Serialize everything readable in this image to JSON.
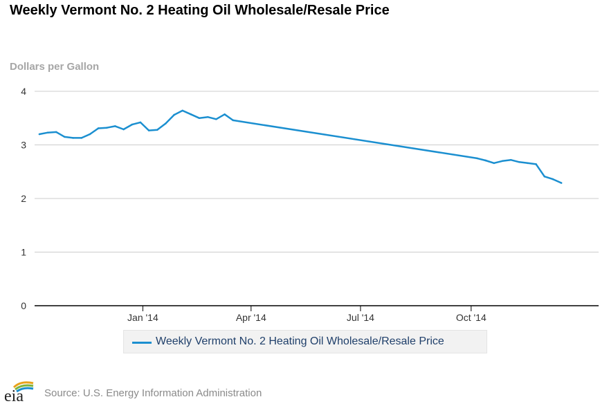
{
  "chart_data": {
    "type": "line",
    "title": "Weekly Vermont No. 2 Heating Oil Wholesale/Resale Price",
    "ylabel": "Dollars per Gallon",
    "xlabel": "",
    "ylim": [
      0,
      4
    ],
    "y_ticks": [
      "0",
      "1",
      "2",
      "3",
      "4"
    ],
    "x_ticks": [
      {
        "label": "Jan '14",
        "date": "2014-01-01"
      },
      {
        "label": "Apr '14",
        "date": "2014-04-01"
      },
      {
        "label": "Jul '14",
        "date": "2014-07-01"
      },
      {
        "label": "Oct '14",
        "date": "2014-10-01"
      }
    ],
    "x_range": [
      "2013-10-03",
      "2015-01-15"
    ],
    "grid": true,
    "legend_position": "bottom-center",
    "series": [
      {
        "name": "Weekly Vermont No. 2 Heating Oil Wholesale/Resale Price",
        "color": "#1b8fd0",
        "points": [
          {
            "x": "2013-10-07",
            "y": 3.2
          },
          {
            "x": "2013-10-14",
            "y": 3.23
          },
          {
            "x": "2013-10-21",
            "y": 3.24
          },
          {
            "x": "2013-10-28",
            "y": 3.15
          },
          {
            "x": "2013-11-04",
            "y": 3.13
          },
          {
            "x": "2013-11-11",
            "y": 3.13
          },
          {
            "x": "2013-11-18",
            "y": 3.2
          },
          {
            "x": "2013-11-25",
            "y": 3.31
          },
          {
            "x": "2013-12-02",
            "y": 3.32
          },
          {
            "x": "2013-12-09",
            "y": 3.35
          },
          {
            "x": "2013-12-16",
            "y": 3.29
          },
          {
            "x": "2013-12-23",
            "y": 3.38
          },
          {
            "x": "2013-12-30",
            "y": 3.42
          },
          {
            "x": "2014-01-06",
            "y": 3.27
          },
          {
            "x": "2014-01-13",
            "y": 3.28
          },
          {
            "x": "2014-01-20",
            "y": 3.4
          },
          {
            "x": "2014-01-27",
            "y": 3.56
          },
          {
            "x": "2014-02-03",
            "y": 3.64
          },
          {
            "x": "2014-02-10",
            "y": 3.57
          },
          {
            "x": "2014-02-17",
            "y": 3.5
          },
          {
            "x": "2014-02-24",
            "y": 3.52
          },
          {
            "x": "2014-03-03",
            "y": 3.48
          },
          {
            "x": "2014-03-10",
            "y": 3.57
          },
          {
            "x": "2014-03-17",
            "y": 3.46
          },
          {
            "x": "2014-10-06",
            "y": 2.75
          },
          {
            "x": "2014-10-13",
            "y": 2.71
          },
          {
            "x": "2014-10-20",
            "y": 2.66
          },
          {
            "x": "2014-10-27",
            "y": 2.7
          },
          {
            "x": "2014-11-03",
            "y": 2.72
          },
          {
            "x": "2014-11-10",
            "y": 2.68
          },
          {
            "x": "2014-11-17",
            "y": 2.66
          },
          {
            "x": "2014-11-24",
            "y": 2.64
          },
          {
            "x": "2014-12-01",
            "y": 2.41
          },
          {
            "x": "2014-12-08",
            "y": 2.36
          },
          {
            "x": "2014-12-15",
            "y": 2.29
          }
        ]
      }
    ]
  },
  "footer": {
    "logo_text": "eia",
    "source": "Source: U.S. Energy Information Administration"
  }
}
